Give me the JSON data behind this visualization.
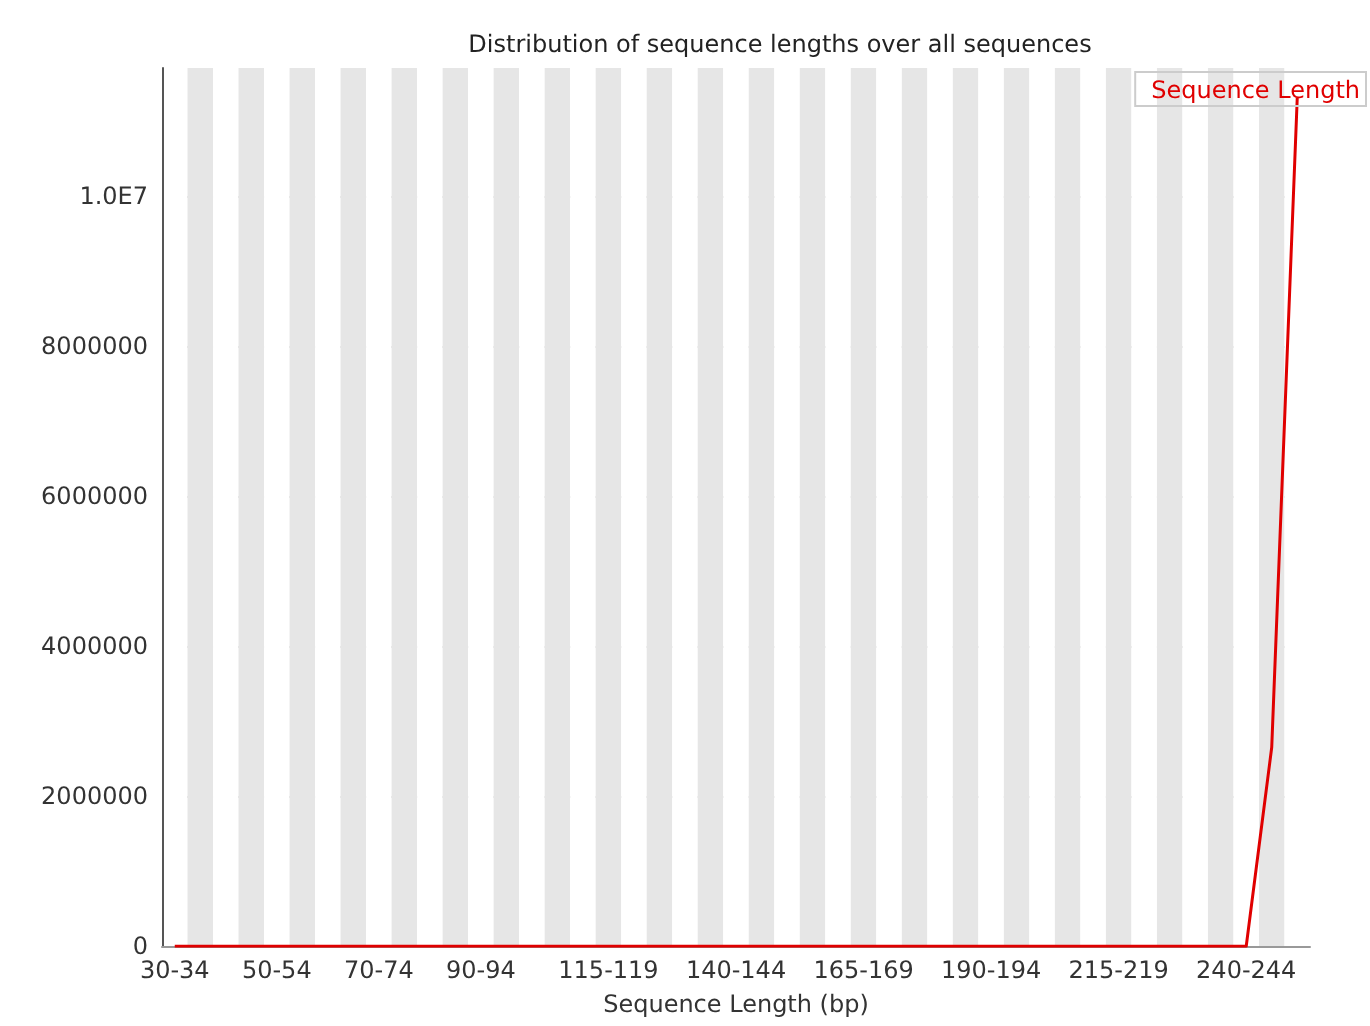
{
  "chart_data": {
    "type": "line",
    "title": "Distribution of sequence lengths over all sequences",
    "xlabel": "Sequence Length (bp)",
    "categories": [
      "30-34",
      null,
      null,
      null,
      "50-54",
      null,
      null,
      null,
      "70-74",
      null,
      null,
      null,
      "90-94",
      null,
      null,
      null,
      null,
      "115-119",
      null,
      null,
      null,
      null,
      "140-144",
      null,
      null,
      null,
      null,
      "165-169",
      null,
      null,
      null,
      null,
      "190-194",
      null,
      null,
      null,
      null,
      "215-219",
      null,
      null,
      null,
      null,
      "240-244",
      null,
      null
    ],
    "series": [
      {
        "name": "Sequence Length",
        "color": "#e00000",
        "values": [
          0,
          0,
          0,
          0,
          0,
          0,
          0,
          0,
          0,
          0,
          0,
          0,
          0,
          0,
          0,
          0,
          0,
          0,
          0,
          0,
          0,
          0,
          0,
          0,
          0,
          0,
          0,
          0,
          0,
          0,
          0,
          0,
          0,
          0,
          0,
          0,
          0,
          0,
          0,
          0,
          0,
          0,
          0,
          2650000,
          11300000
        ]
      }
    ],
    "ylim": [
      0,
      11700000
    ],
    "yticks": [
      0,
      2000000,
      4000000,
      6000000,
      8000000,
      {
        "value": 10000000,
        "label": "1.0E7"
      }
    ],
    "grid": true,
    "legend": "top right",
    "marker": "none"
  }
}
